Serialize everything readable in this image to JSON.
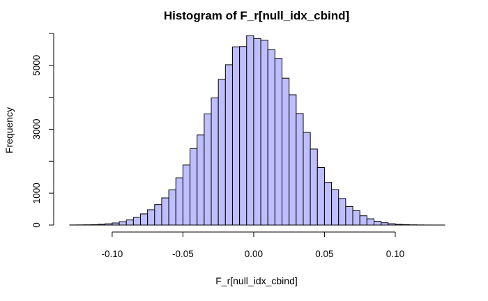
{
  "chart_data": {
    "type": "bar",
    "title": "Histogram of F_r[null_idx_cbind]",
    "xlabel": "F_r[null_idx_cbind]",
    "ylabel": "Frequency",
    "bar_color": "#bfbfff",
    "xlim": [
      -0.13,
      0.135
    ],
    "ylim": [
      0,
      6000
    ],
    "bin_width": 0.005,
    "bin_start": -0.13,
    "counts": [
      3,
      5,
      8,
      12,
      25,
      40,
      65,
      105,
      160,
      240,
      350,
      480,
      640,
      850,
      1100,
      1480,
      1880,
      2390,
      2820,
      3480,
      3980,
      4560,
      5020,
      5580,
      5590,
      5930,
      5840,
      5790,
      5490,
      5220,
      4600,
      4080,
      3490,
      2900,
      2380,
      1800,
      1340,
      1110,
      830,
      580,
      450,
      290,
      195,
      118,
      72,
      42,
      24,
      14,
      7,
      4,
      2,
      1,
      1
    ],
    "x_ticks": [
      -0.1,
      -0.05,
      0.0,
      0.05,
      0.1
    ],
    "x_tick_labels": [
      "-0.10",
      "-0.05",
      "0.00",
      "0.05",
      "0.10"
    ],
    "y_ticks": [
      0,
      1000,
      2000,
      3000,
      4000,
      5000,
      6000
    ],
    "y_tick_labels": [
      "0",
      "1000",
      "",
      "3000",
      "",
      "5000",
      ""
    ]
  }
}
